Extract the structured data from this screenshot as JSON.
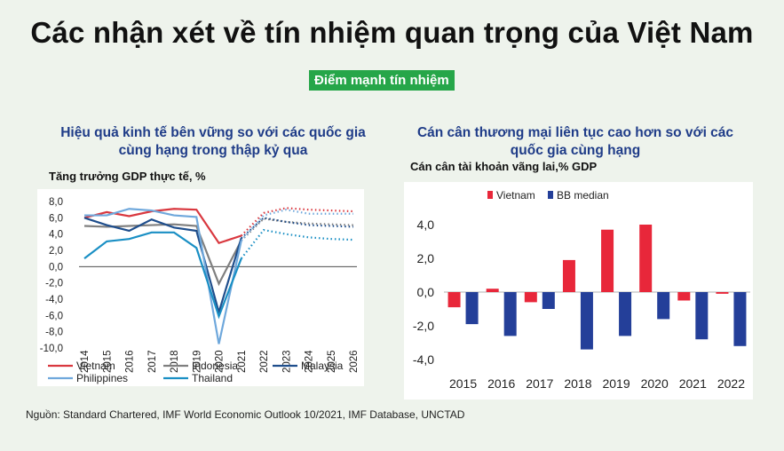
{
  "title": "Các nhận xét về tín nhiệm quan trọng của Việt Nam",
  "badge": "Điểm mạnh tín nhiệm",
  "left": {
    "subtitle_line1": "Hiệu quả kinh tế bên vững so với các quốc gia",
    "subtitle_line2": "cùng hạng trong thập kỷ qua"
  },
  "right": {
    "subtitle_line1": "Cán cân thương mại liên tục cao hơn so với các",
    "subtitle_line2": "quốc gia cùng hạng"
  },
  "source": "Nguồn: Standard Chartered, IMF World Economic Outlook 10/2021, IMF Database, UNCTAD",
  "chart_data": [
    {
      "type": "line",
      "title": "Hiệu quả kinh tế bên vững so với các quốc gia cùng hạng trong thập kỷ qua",
      "ylabel": "Tăng trưởng GDP thực tế, %",
      "categories": [
        "2014",
        "2015",
        "2016",
        "2017",
        "2018",
        "2019",
        "2020",
        "2021",
        "2022",
        "2023",
        "2024",
        "2025",
        "2026"
      ],
      "y_ticks": [
        "8,0",
        "6,0",
        "4,0",
        "2,0",
        "0,0",
        "-2,0",
        "-4,0",
        "-6,0",
        "-8,0",
        "-10,0"
      ],
      "ylim": [
        -10,
        8
      ],
      "forecast_from": "2021",
      "series": [
        {
          "name": "Vietnam",
          "color": "#d9383f",
          "values": [
            6.0,
            6.7,
            6.2,
            6.8,
            7.1,
            7.0,
            2.9,
            3.8,
            6.6,
            7.2,
            7.0,
            6.9,
            6.8
          ]
        },
        {
          "name": "Indonesia",
          "color": "#7f7f7f",
          "values": [
            5.0,
            4.9,
            5.0,
            5.1,
            5.2,
            5.0,
            -2.1,
            3.2,
            5.9,
            5.5,
            5.3,
            5.2,
            5.1
          ]
        },
        {
          "name": "Malaysia",
          "color": "#1f4e8c",
          "values": [
            6.0,
            5.1,
            4.4,
            5.8,
            4.8,
            4.4,
            -5.6,
            3.5,
            6.0,
            5.5,
            5.1,
            5.0,
            4.9
          ]
        },
        {
          "name": "Philippines",
          "color": "#6fa8dc",
          "values": [
            6.3,
            6.3,
            7.1,
            6.9,
            6.3,
            6.1,
            -9.5,
            3.2,
            6.3,
            7.0,
            6.5,
            6.5,
            6.5
          ]
        },
        {
          "name": "Thailand",
          "color": "#1a8fc4",
          "values": [
            1.0,
            3.1,
            3.4,
            4.2,
            4.2,
            2.3,
            -6.1,
            1.0,
            4.5,
            4.0,
            3.6,
            3.4,
            3.3
          ]
        }
      ]
    },
    {
      "type": "bar",
      "title": "Cán cân thương mại liên tục cao hơn so với các quốc gia cùng hạng",
      "ylabel": "Cán cân tài khoản vãng lai,% GDP",
      "categories": [
        "2015",
        "2016",
        "2017",
        "2018",
        "2019",
        "2020",
        "2021",
        "2022"
      ],
      "y_ticks": [
        "4,0",
        "2,0",
        "0,0",
        "-2,0",
        "-4,0"
      ],
      "ylim": [
        -4,
        4
      ],
      "series": [
        {
          "name": "Vietnam",
          "color": "#e8273a",
          "values": [
            -0.9,
            0.2,
            -0.6,
            1.9,
            3.7,
            4.0,
            -0.5,
            -0.1
          ]
        },
        {
          "name": "BB median",
          "color": "#243f99",
          "values": [
            -1.9,
            -2.6,
            -1.0,
            -3.4,
            -2.6,
            -1.6,
            -2.8,
            -3.2
          ]
        }
      ]
    }
  ]
}
